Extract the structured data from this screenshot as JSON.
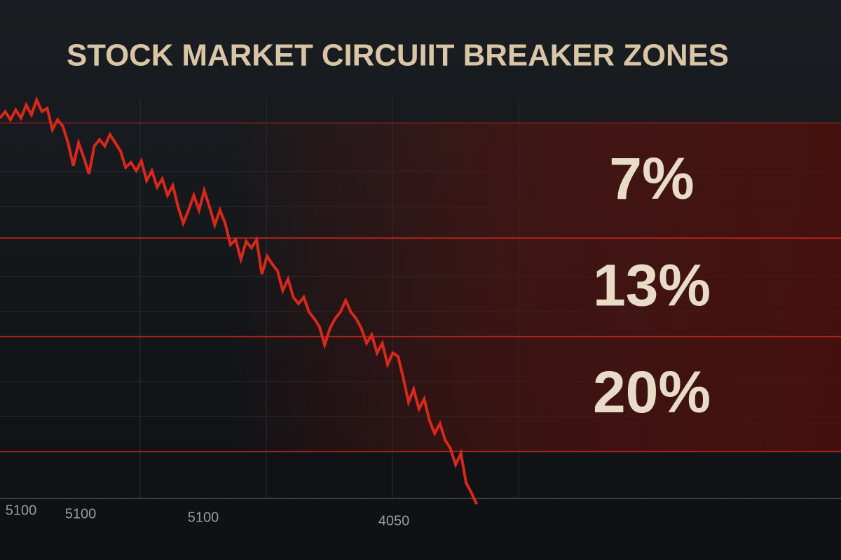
{
  "chart_data": {
    "type": "line",
    "title": "STOCK MARKET CIRCUIIT BREAKER ZONES",
    "xtick_labels": [
      "5100",
      "5100",
      "5100",
      "4050"
    ],
    "values": [
      -0.3,
      -0.7,
      -0.2,
      -0.8,
      -0.3,
      -1.1,
      -0.5,
      -1.4,
      -0.7,
      -0.9,
      0.4,
      -0.2,
      0.2,
      1.2,
      2.6,
      1.2,
      2.1,
      3.1,
      1.4,
      1.0,
      1.4,
      0.7,
      1.2,
      1.7,
      2.7,
      2.4,
      2.9,
      2.3,
      3.5,
      2.9,
      3.9,
      3.4,
      4.4,
      3.8,
      5.1,
      6.1,
      5.3,
      4.4,
      5.3,
      4.1,
      5.1,
      6.2,
      5.3,
      6.1,
      7.4,
      7.1,
      8.3,
      7.2,
      7.6,
      7.1,
      9.2,
      8.1,
      8.6,
      9.0,
      10.2,
      9.5,
      10.6,
      11.0,
      10.6,
      11.5,
      11.9,
      12.4,
      13.5,
      12.5,
      11.9,
      11.5,
      10.8,
      11.5,
      11.9,
      12.5,
      13.4,
      12.9,
      14.0,
      13.4,
      14.7,
      14.0,
      14.2,
      15.5,
      17.0,
      16.2,
      17.4,
      16.8,
      18.1,
      18.9,
      18.3,
      19.3,
      19.8,
      20.8,
      20.1,
      21.9,
      22.5,
      23.2
    ],
    "color": "#d8281c",
    "ylim": [
      -6,
      24
    ],
    "zones": [
      {
        "value": 7,
        "label": "7%"
      },
      {
        "value": 13,
        "label": "13%"
      },
      {
        "value": 20,
        "label": "20%"
      }
    ],
    "zone_color": "#c0281c"
  }
}
